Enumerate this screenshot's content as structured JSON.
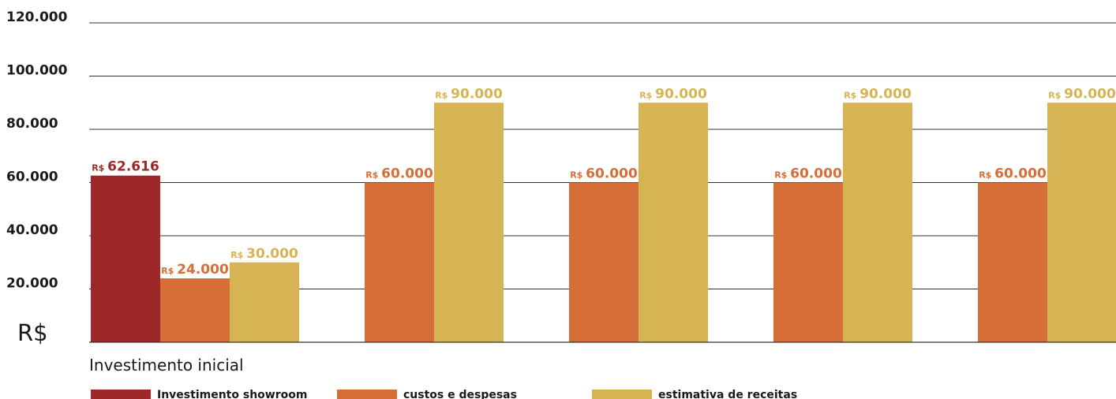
{
  "chart_data": {
    "type": "bar",
    "ylim": [
      0,
      120000
    ],
    "yticks": [
      {
        "value": 20000,
        "label": "20.000"
      },
      {
        "value": 40000,
        "label": "40.000"
      },
      {
        "value": 60000,
        "label": "60.000"
      },
      {
        "value": 80000,
        "label": "80.000"
      },
      {
        "value": 100000,
        "label": "100.000"
      },
      {
        "value": 120000,
        "label": "120.000"
      }
    ],
    "unit_label": "R$",
    "value_prefix": "R$",
    "categories": [
      "Investimento inicial",
      "",
      "",
      "",
      ""
    ],
    "series": [
      {
        "name": "Investimento showroom",
        "color": "#9e2828",
        "values": [
          62616,
          null,
          null,
          null,
          null
        ],
        "labels": [
          "62.616",
          "",
          "",
          "",
          ""
        ]
      },
      {
        "name": "custos e despesas",
        "color": "#d66e37",
        "values": [
          24000,
          60000,
          60000,
          60000,
          60000
        ],
        "labels": [
          "24.000",
          "60.000",
          "60.000",
          "60.000",
          "60.000"
        ]
      },
      {
        "name": "estimativa de receitas",
        "color": "#d6b454",
        "values": [
          30000,
          90000,
          90000,
          90000,
          90000
        ],
        "labels": [
          "30.000",
          "90.000",
          "90.000",
          "90.000",
          "90.000"
        ]
      }
    ],
    "grid": true,
    "legend_position": "bottom"
  }
}
